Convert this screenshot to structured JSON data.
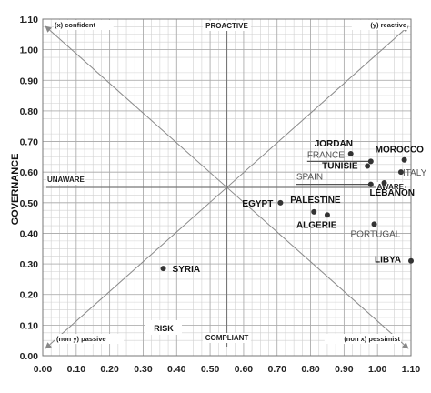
{
  "chart_data": {
    "type": "scatter",
    "ylabel": "GOVERNANCE",
    "inner_label": "RISK",
    "xlim": [
      0.0,
      1.1
    ],
    "ylim": [
      0.0,
      1.1
    ],
    "tick_step": 0.1,
    "minor_step": 0.025,
    "grid": true,
    "x_ticks": [
      "0.00",
      "0.10",
      "0.20",
      "0.30",
      "0.40",
      "0.50",
      "0.60",
      "0.70",
      "0.80",
      "0.90",
      "1.00",
      "1.10"
    ],
    "y_ticks": [
      "0.00",
      "0.10",
      "0.20",
      "0.30",
      "0.40",
      "0.50",
      "0.60",
      "0.70",
      "0.80",
      "0.90",
      "1.00",
      "1.10"
    ],
    "center": [
      0.55,
      0.55
    ],
    "quadrant_labels": {
      "top_left": "(x) confident",
      "top_right": "(y) reactive",
      "bottom_left": "(non y) passive",
      "bottom_right": "(non x) pessimist",
      "top": "PROACTIVE",
      "bottom": "COMPLIANT",
      "left": "UNAWARE",
      "right": "AWARE"
    },
    "points": [
      {
        "label": "JORDAN",
        "x": 0.92,
        "y": 0.66,
        "style": "bold"
      },
      {
        "label": "MOROCCO",
        "x": 1.08,
        "y": 0.64,
        "style": "bold"
      },
      {
        "label": "FRANCE",
        "x": 0.98,
        "y": 0.635,
        "style": "gray"
      },
      {
        "label": "TUNISIE",
        "x": 0.97,
        "y": 0.62,
        "style": "bold"
      },
      {
        "label": "ITALY",
        "x": 1.07,
        "y": 0.6,
        "style": "gray"
      },
      {
        "label": "SPAIN",
        "x": 0.98,
        "y": 0.56,
        "style": "gray"
      },
      {
        "label": "LEBANON",
        "x": 1.02,
        "y": 0.565,
        "style": "bold"
      },
      {
        "label": "EGYPT",
        "x": 0.71,
        "y": 0.5,
        "style": "bold"
      },
      {
        "label": "PALESTINE",
        "x": 0.81,
        "y": 0.47,
        "style": "bold"
      },
      {
        "label": "ALGERIE",
        "x": 0.85,
        "y": 0.46,
        "style": "bold"
      },
      {
        "label": "PORTUGAL",
        "x": 0.99,
        "y": 0.43,
        "style": "gray"
      },
      {
        "label": "LIBYA",
        "x": 1.1,
        "y": 0.31,
        "style": "bold"
      },
      {
        "label": "SYRIA",
        "x": 0.36,
        "y": 0.285,
        "style": "bold"
      }
    ],
    "colors": {
      "point": "#333333",
      "grid_minor": "#d0d0d0",
      "grid_major": "#a8a8a8",
      "axis": "#888888"
    }
  }
}
